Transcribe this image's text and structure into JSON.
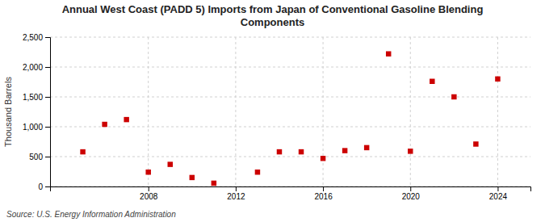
{
  "chart_data": {
    "type": "scatter",
    "title": "Annual West Coast (PADD 5) Imports from Japan of Conventional Gasoline Blending\nComponents",
    "y_label": "Thousand Barrels",
    "annotations": [
      "Source: U.S. Energy Information Administration"
    ],
    "x": [
      2005,
      2006,
      2007,
      2008,
      2009,
      2010,
      2011,
      2013,
      2014,
      2015,
      2016,
      2017,
      2018,
      2019,
      2020,
      2021,
      2022,
      2023,
      2024
    ],
    "values": [
      580,
      1040,
      1120,
      240,
      370,
      150,
      55,
      240,
      580,
      580,
      470,
      600,
      650,
      2220,
      590,
      1760,
      1500,
      710,
      1800
    ],
    "color": "#cc0000",
    "marker": "square",
    "xlim": [
      2003.5,
      2025.5
    ],
    "ylim": [
      0,
      2500
    ],
    "xticks": [
      2008,
      2012,
      2016,
      2020,
      2024
    ],
    "yticks": [
      0,
      500,
      {
        "value": 1000,
        "label": "1,000"
      },
      {
        "value": 1500,
        "label": "1,500"
      },
      {
        "value": 2000,
        "label": "2,000"
      },
      {
        "value": 2500,
        "label": "2,500"
      }
    ],
    "grid": true
  }
}
